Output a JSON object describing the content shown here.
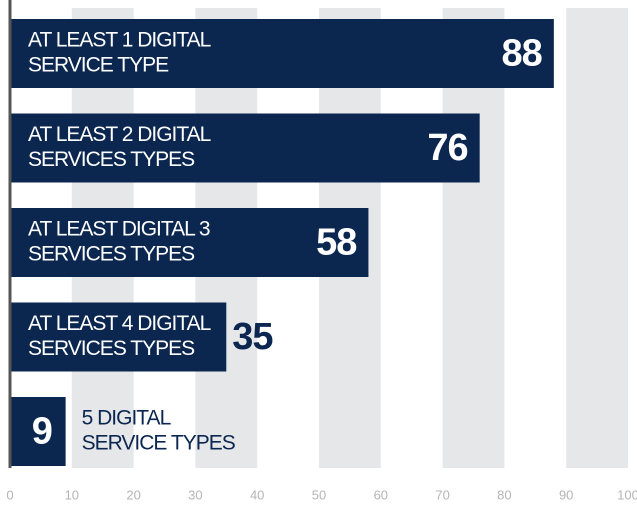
{
  "chart_data": {
    "type": "bar",
    "orientation": "horizontal",
    "categories": [
      [
        "AT LEAST 1 DIGITAL",
        "SERVICE TYPE"
      ],
      [
        "AT LEAST 2 DIGITAL",
        "SERVICES TYPES"
      ],
      [
        "AT LEAST DIGITAL 3",
        "SERVICES TYPES"
      ],
      [
        "AT LEAST 4 DIGITAL",
        "SERVICES TYPES"
      ],
      [
        "5 DIGITAL",
        "SERVICE TYPES"
      ]
    ],
    "values": [
      88,
      76,
      58,
      35,
      9
    ],
    "color": "#0b2750",
    "xlim": [
      0,
      100
    ],
    "xticks": [
      0,
      10,
      20,
      30,
      40,
      50,
      60,
      70,
      80,
      90,
      100
    ],
    "grid": true
  }
}
